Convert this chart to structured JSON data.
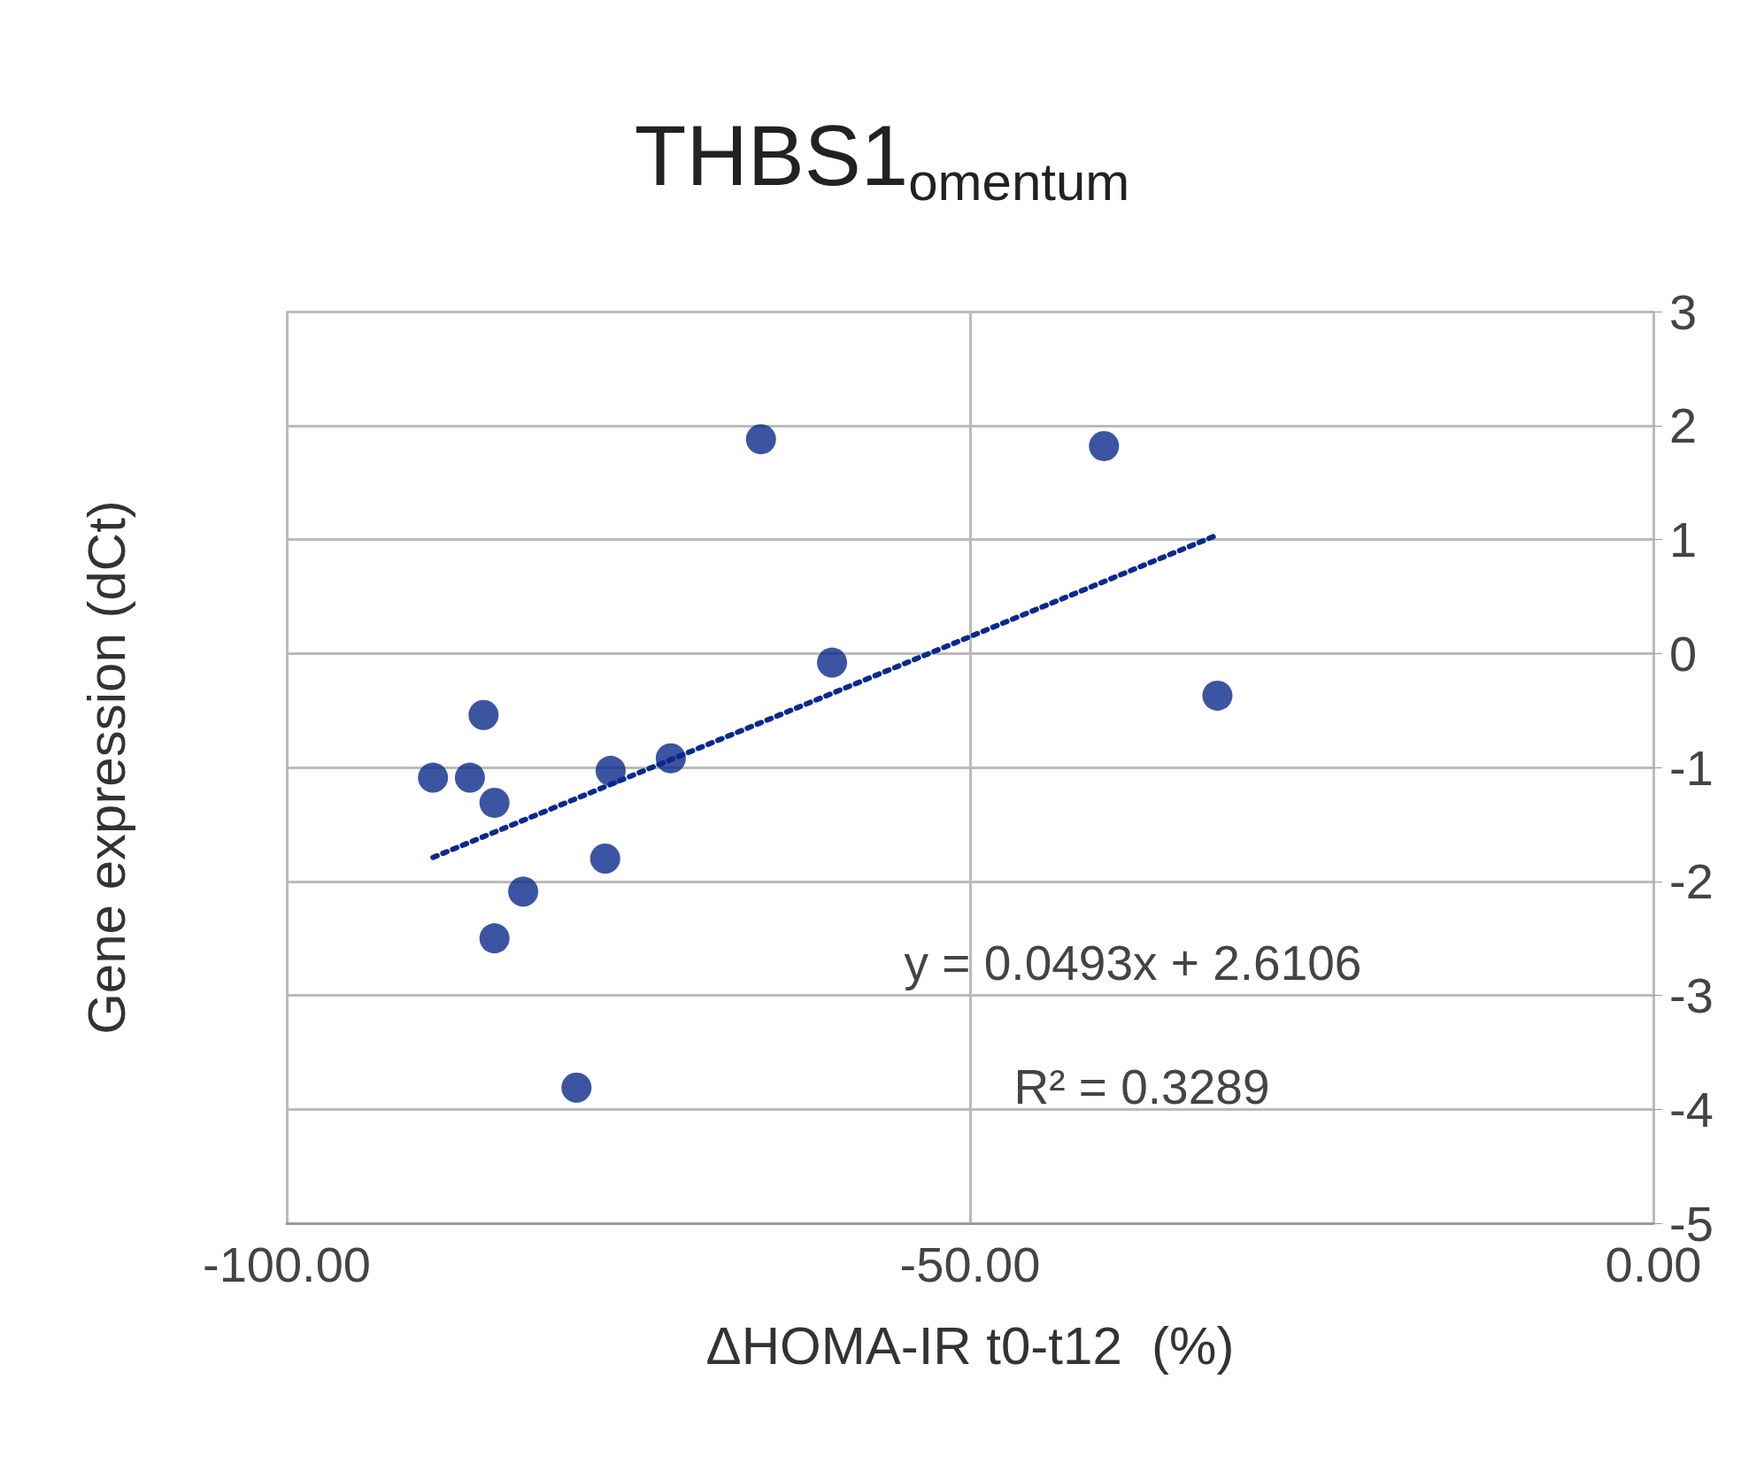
{
  "chart_data": {
    "type": "scatter",
    "title": "THBS1$_{omentum}$",
    "xlabel": "ΔHOMA-IR t0-t12  (%)",
    "ylabel": "Gene expression (dCt)",
    "annotations": [
      "y = 0.0493x + 2.6106",
      "R² = 0.3289"
    ],
    "series": [
      {
        "color": "#0a2a8c",
        "marker": "circle",
        "x": [
          -65.3,
          -40.2,
          -60.1,
          -31.9,
          -85.6,
          -89.3,
          -86.6,
          -84.8,
          -76.3,
          -71.9,
          -76.7,
          -82.7,
          -84.8,
          -78.8
        ],
        "values": [
          1.88,
          1.82,
          -0.08,
          -0.37,
          -0.54,
          -1.09,
          -1.09,
          -1.31,
          -1.03,
          -0.92,
          -1.8,
          -2.09,
          -2.5,
          -3.81
        ]
      },
      {
        "type": "line",
        "color": "#0a2a8c",
        "line_style": "dotted",
        "marker": "none",
        "x": [
          -89.3,
          -31.9
        ],
        "values": [
          -1.79,
          1.04
        ]
      }
    ],
    "xlim": [
      -100,
      0
    ],
    "xticks": [
      {
        "value": -100,
        "label": "-100.00"
      },
      {
        "value": -50,
        "label": "-50.00"
      },
      {
        "value": 0,
        "label": "0.00"
      }
    ],
    "ylim": [
      -5,
      3
    ],
    "yticks": [
      -5,
      -4,
      -3,
      -2,
      -1,
      0,
      1,
      2,
      3
    ],
    "grid": true
  }
}
